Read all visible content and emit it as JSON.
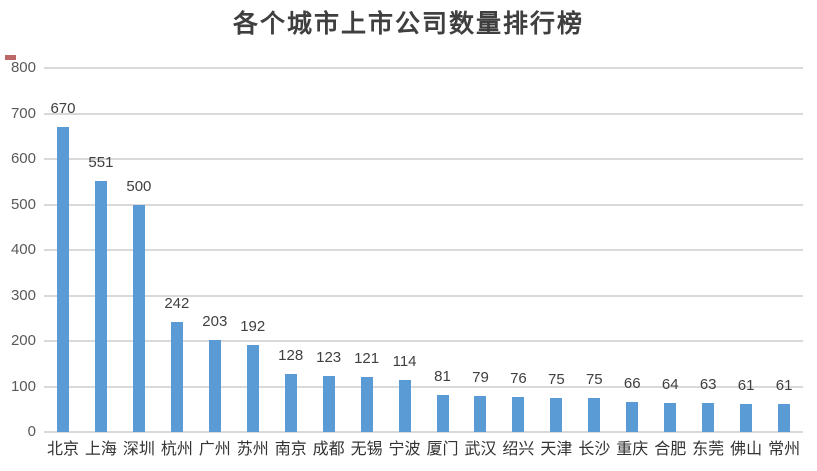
{
  "title": "各个城市上市公司数量排行榜",
  "colors": {
    "bar": "#5b9bd5",
    "gridline": "#d9d9d9",
    "title_text": "#3f3f3f",
    "axis_tick_text": "#595959",
    "data_label_text": "#404040",
    "category_text": "#333333",
    "background": "#ffffff",
    "artifact_mark": "#a94442"
  },
  "chart_data": {
    "type": "bar",
    "title": "各个城市上市公司数量排行榜",
    "categories": [
      "北京",
      "上海",
      "深圳",
      "杭州",
      "广州",
      "苏州",
      "南京",
      "成都",
      "无锡",
      "宁波",
      "厦门",
      "武汉",
      "绍兴",
      "天津",
      "长沙",
      "重庆",
      "合肥",
      "东莞",
      "佛山",
      "常州"
    ],
    "values": [
      670,
      551,
      500,
      242,
      203,
      192,
      128,
      123,
      121,
      114,
      81,
      79,
      76,
      75,
      75,
      66,
      64,
      63,
      61,
      61
    ],
    "xlabel": "",
    "ylabel": "",
    "ylim": [
      0,
      800
    ],
    "yticks": [
      0,
      100,
      200,
      300,
      400,
      500,
      600,
      700,
      800
    ],
    "grid": true,
    "legend": false,
    "data_labels": "outside-end",
    "orientation": "vertical"
  }
}
